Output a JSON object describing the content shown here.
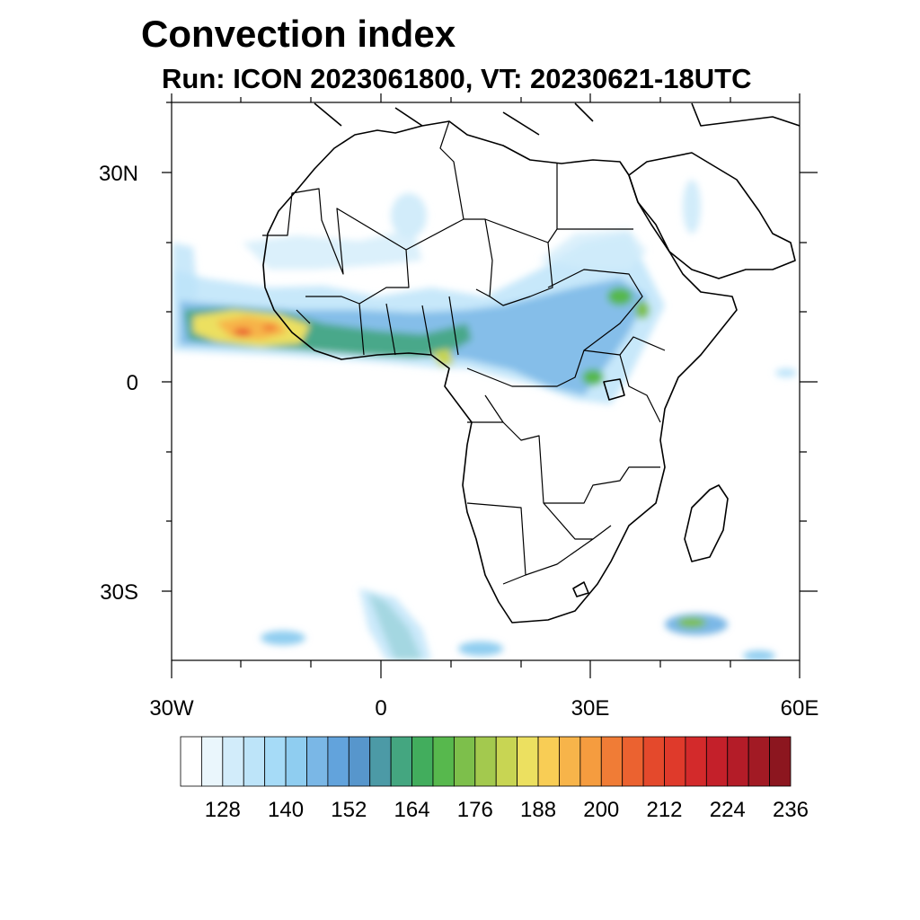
{
  "title": "Convection index",
  "subtitle": "Run: ICON 2023061800,  VT: 20230621-18UTC",
  "map": {
    "extent": {
      "lon": [
        -30,
        60
      ],
      "lat": [
        -40,
        40
      ]
    },
    "lat_ticks": [
      {
        "lat": 30,
        "label": "30N"
      },
      {
        "lat": 0,
        "label": "0"
      },
      {
        "lat": -30,
        "label": "30S"
      }
    ],
    "lon_ticks": [
      {
        "lon": -30,
        "label": "30W"
      },
      {
        "lon": 0,
        "label": "0"
      },
      {
        "lon": 30,
        "label": "30E"
      },
      {
        "lon": 60,
        "label": "60E"
      }
    ],
    "field_name": "Convection index",
    "colorbar": {
      "labels": [
        "128",
        "140",
        "152",
        "164",
        "176",
        "188",
        "200",
        "212",
        "224",
        "236"
      ],
      "colors": [
        "#ffffff",
        "#eaf6fc",
        "#d2ecfa",
        "#bde4f9",
        "#a6dbf7",
        "#8fcdf0",
        "#7ab7e6",
        "#62a3dc",
        "#5796cc",
        "#4c9aa6",
        "#44a680",
        "#42ad5d",
        "#57b84d",
        "#7dbf4b",
        "#a3c94e",
        "#c8d553",
        "#ece060",
        "#f8cd55",
        "#f7b44a",
        "#f59c3f",
        "#f07c36",
        "#eb6230",
        "#e4492c",
        "#df3a2b",
        "#d32a2b",
        "#c4202a",
        "#b41c28",
        "#a21a24",
        "#8c161f"
      ]
    }
  }
}
